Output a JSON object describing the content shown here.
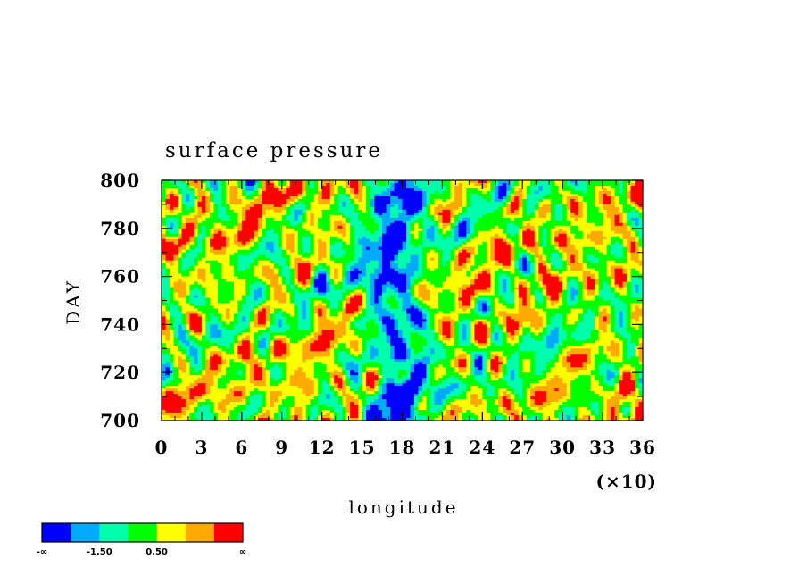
{
  "chart_data": {
    "type": "heatmap",
    "title": "surface pressure",
    "xlabel": "longitude",
    "ylabel": "DAY",
    "x_multiplier_label": "(×10)",
    "xlim": [
      0,
      36
    ],
    "ylim": [
      700,
      800
    ],
    "x_ticks": [
      "0",
      "3",
      "6",
      "9",
      "12",
      "15",
      "18",
      "21",
      "24",
      "27",
      "30",
      "33",
      "36"
    ],
    "y_ticks": [
      "700",
      "720",
      "740",
      "760",
      "780",
      "800"
    ],
    "colorbar": {
      "colors": [
        "#0000ff",
        "#00aaff",
        "#00ffaa",
        "#00ff00",
        "#ffff00",
        "#ffaa00",
        "#ff0000"
      ],
      "labels": [
        "-∞",
        "-1.50",
        "0.50",
        "∞"
      ]
    }
  }
}
